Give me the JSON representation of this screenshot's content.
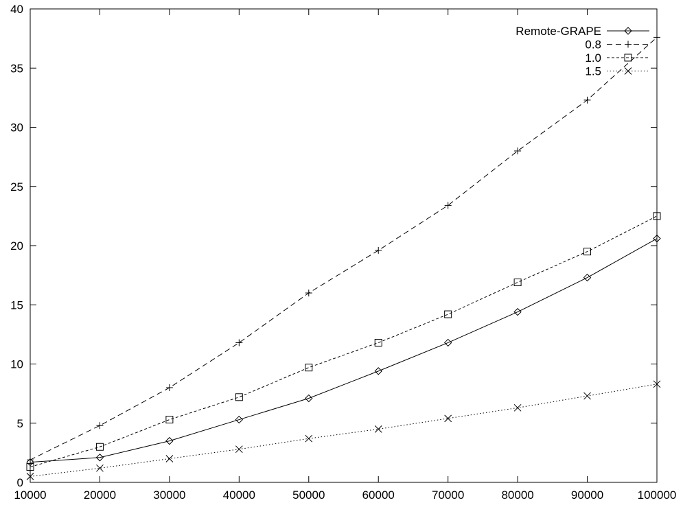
{
  "chart_data": {
    "type": "line",
    "title": "",
    "xlabel": "",
    "ylabel": "",
    "xlim": [
      10000,
      100000
    ],
    "ylim": [
      0,
      40
    ],
    "xticks": [
      10000,
      20000,
      30000,
      40000,
      50000,
      60000,
      70000,
      80000,
      90000,
      100000
    ],
    "yticks": [
      0,
      5,
      10,
      15,
      20,
      25,
      30,
      35,
      40
    ],
    "grid": false,
    "legend_position": "top-right",
    "x": [
      10000,
      20000,
      30000,
      40000,
      50000,
      60000,
      70000,
      80000,
      90000,
      100000
    ],
    "series": [
      {
        "name": "Remote-GRAPE",
        "line": "solid",
        "marker": "diamond",
        "values": [
          1.7,
          2.1,
          3.5,
          5.3,
          7.1,
          9.4,
          11.8,
          14.4,
          17.3,
          20.6
        ]
      },
      {
        "name": "0.8",
        "line": "long-dash",
        "marker": "plus",
        "values": [
          1.9,
          4.8,
          8.0,
          11.8,
          16.0,
          19.6,
          23.4,
          28.0,
          32.3,
          37.6
        ]
      },
      {
        "name": "1.0",
        "line": "short-dash",
        "marker": "square",
        "values": [
          1.3,
          3.0,
          5.3,
          7.2,
          9.7,
          11.8,
          14.2,
          16.9,
          19.5,
          22.5
        ]
      },
      {
        "name": "1.5",
        "line": "dotted",
        "marker": "cross",
        "values": [
          0.5,
          1.2,
          2.0,
          2.8,
          3.7,
          4.5,
          5.4,
          6.3,
          7.3,
          8.3
        ]
      }
    ]
  }
}
